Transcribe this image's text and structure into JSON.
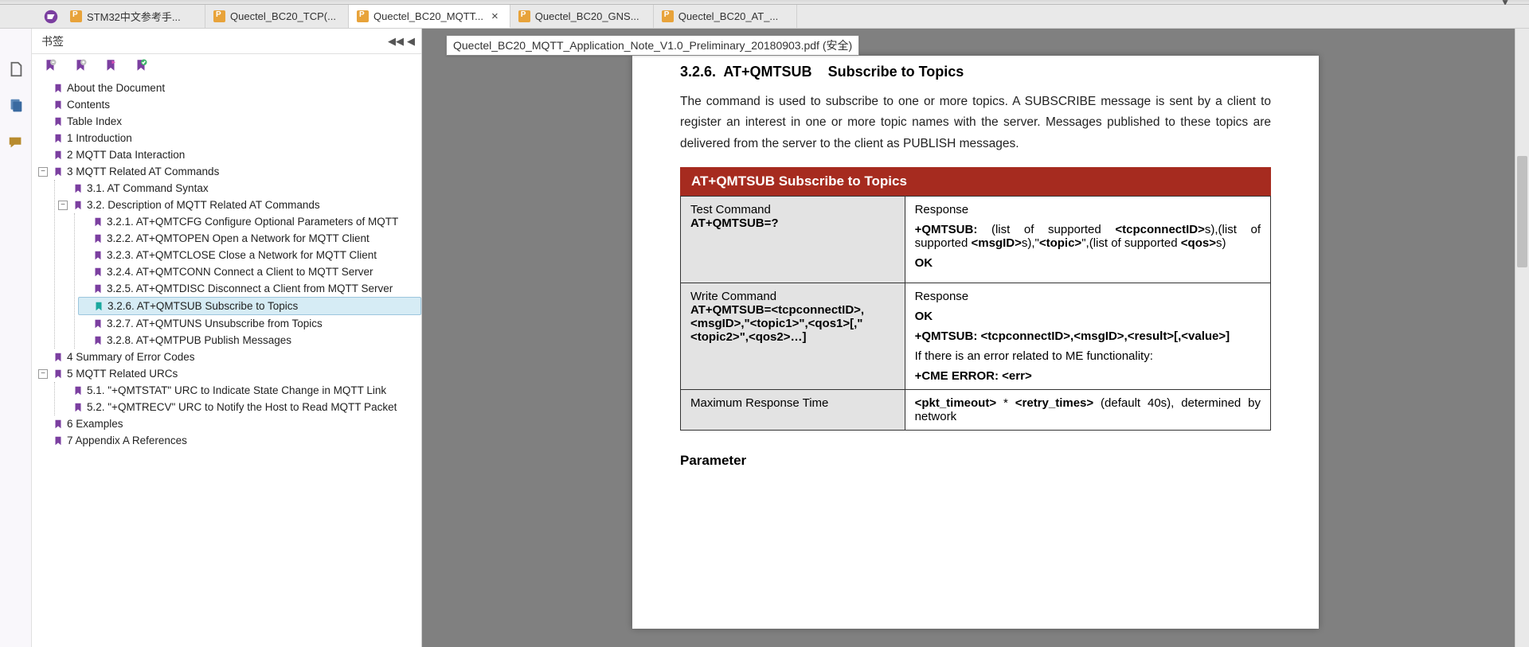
{
  "tabs": [
    {
      "label": "STM32中文参考手..."
    },
    {
      "label": "Quectel_BC20_TCP(..."
    },
    {
      "label": "Quectel_BC20_MQTT...",
      "active": true
    },
    {
      "label": "Quectel_BC20_GNS..."
    },
    {
      "label": "Quectel_BC20_AT_..."
    }
  ],
  "bookmarks": {
    "title": "书签",
    "items": [
      {
        "t": "About the Document"
      },
      {
        "t": "Contents"
      },
      {
        "t": "Table Index"
      },
      {
        "t": "1 Introduction"
      },
      {
        "t": "2 MQTT Data Interaction"
      },
      {
        "t": "3 MQTT Related AT Commands",
        "open": true,
        "children": [
          {
            "t": "3.1. AT Command Syntax"
          },
          {
            "t": "3.2. Description of MQTT Related AT Commands",
            "open": true,
            "children": [
              {
                "t": "3.2.1. AT+QMTCFG  Configure Optional Parameters of MQTT"
              },
              {
                "t": "3.2.2. AT+QMTOPEN  Open a Network for MQTT Client"
              },
              {
                "t": "3.2.3. AT+QMTCLOSE  Close a Network for MQTT Client"
              },
              {
                "t": "3.2.4. AT+QMTCONN  Connect a Client to MQTT Server"
              },
              {
                "t": "3.2.5. AT+QMTDISC  Disconnect a Client from MQTT Server"
              },
              {
                "t": "3.2.6. AT+QMTSUB  Subscribe to Topics",
                "sel": true
              },
              {
                "t": "3.2.7. AT+QMTUNS  Unsubscribe from Topics"
              },
              {
                "t": "3.2.8. AT+QMTPUB  Publish Messages"
              }
            ]
          }
        ]
      },
      {
        "t": "4 Summary of Error Codes"
      },
      {
        "t": "5 MQTT Related URCs",
        "open": true,
        "children": [
          {
            "t": "5.1. \"+QMTSTAT\" URC to Indicate State Change in MQTT Link"
          },
          {
            "t": "5.2. \"+QMTRECV\" URC to Notify the Host to Read MQTT Packet"
          }
        ]
      },
      {
        "t": "6 Examples"
      },
      {
        "t": "7 Appendix A References"
      }
    ]
  },
  "tooltip": "Quectel_BC20_MQTT_Application_Note_V1.0_Preliminary_20180903.pdf (安全)",
  "doc": {
    "sectionNo": "3.2.6.",
    "sectionCmd": "AT+QMTSUB",
    "sectionTitle": "Subscribe to Topics",
    "description": "The command is used to subscribe to one or more topics. A SUBSCRIBE message is sent by a client to register an interest in one or more topic names with the server. Messages published to these topics are delivered from the server to the client as PUBLISH messages.",
    "tableHeader": "AT+QMTSUB    Subscribe to Topics",
    "rows": {
      "r1c1a": "Test Command",
      "r1c1b": "AT+QMTSUB=?",
      "r1c2a": "Response",
      "r1c2b_pre": "+QMTSUB: ",
      "r1c2b_mid": "(list of supported ",
      "r1c2b_tcp": "<tcpconnectID>",
      "r1c2b_s1": "s),(list of supported ",
      "r1c2b_msg": "<msgID>",
      "r1c2b_s2": "s),\"",
      "r1c2b_topic": "<topic>",
      "r1c2b_s3": "\",(list of supported ",
      "r1c2b_qos": "<qos>",
      "r1c2b_s4": "s)",
      "r1c2c": "OK",
      "r2c1a": "Write Command",
      "r2c1b": "AT+QMTSUB=<tcpconnectID>,<msgID>,\"<topic1>\",<qos1>[,\"<topic2>\",<qos2>…]",
      "r2c2a": "Response",
      "r2c2b": "OK",
      "r2c2c": "+QMTSUB: <tcpconnectID>,<msgID>,<result>[,<value>]",
      "r2c2d": "If there is an error related to ME functionality:",
      "r2c2e": "+CME ERROR: <err>",
      "r3c1": "Maximum Response Time",
      "r3c2a": "<pkt_timeout>",
      "r3c2b": " * ",
      "r3c2c": "<retry_times>",
      "r3c2d": " (default 40s), determined by network"
    },
    "paramHdr": "Parameter"
  }
}
